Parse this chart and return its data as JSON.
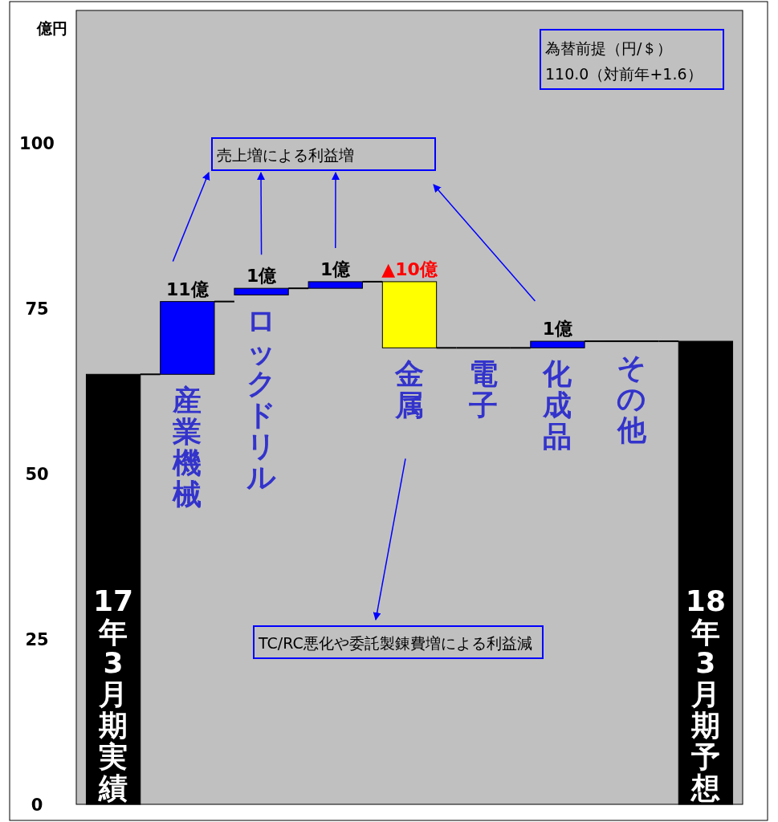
{
  "chart_data": {
    "type": "bar",
    "ylabel": "億円",
    "categories": [
      "17年3月期実績",
      "産業機械",
      "ロックドリル",
      null,
      "金属",
      "電子",
      "化成品",
      "その他",
      "18年3月期予想"
    ],
    "base": [
      null,
      65,
      77,
      78,
      79,
      69,
      69,
      70,
      null
    ],
    "values": [
      65,
      11,
      1,
      1,
      -10,
      0,
      1,
      0,
      70
    ],
    "colors": [
      "#000000",
      "#0000ff",
      "#0000ff",
      "#0000ff",
      "#ffff00",
      "#000000",
      "#0000ff",
      "#000000",
      "#000000"
    ],
    "value_labels": [
      null,
      "11億",
      "1億",
      "1億",
      "▲10億",
      null,
      "1億",
      null,
      null
    ],
    "ylim": [
      0,
      120
    ],
    "yticks": [
      0,
      25,
      50,
      75,
      100
    ],
    "annotations": [
      "為替前提（円/＄）110.0（対前年+1.6）",
      "売上増による利益増",
      "TC/RC悪化や委託製錬費増による利益減"
    ]
  }
}
